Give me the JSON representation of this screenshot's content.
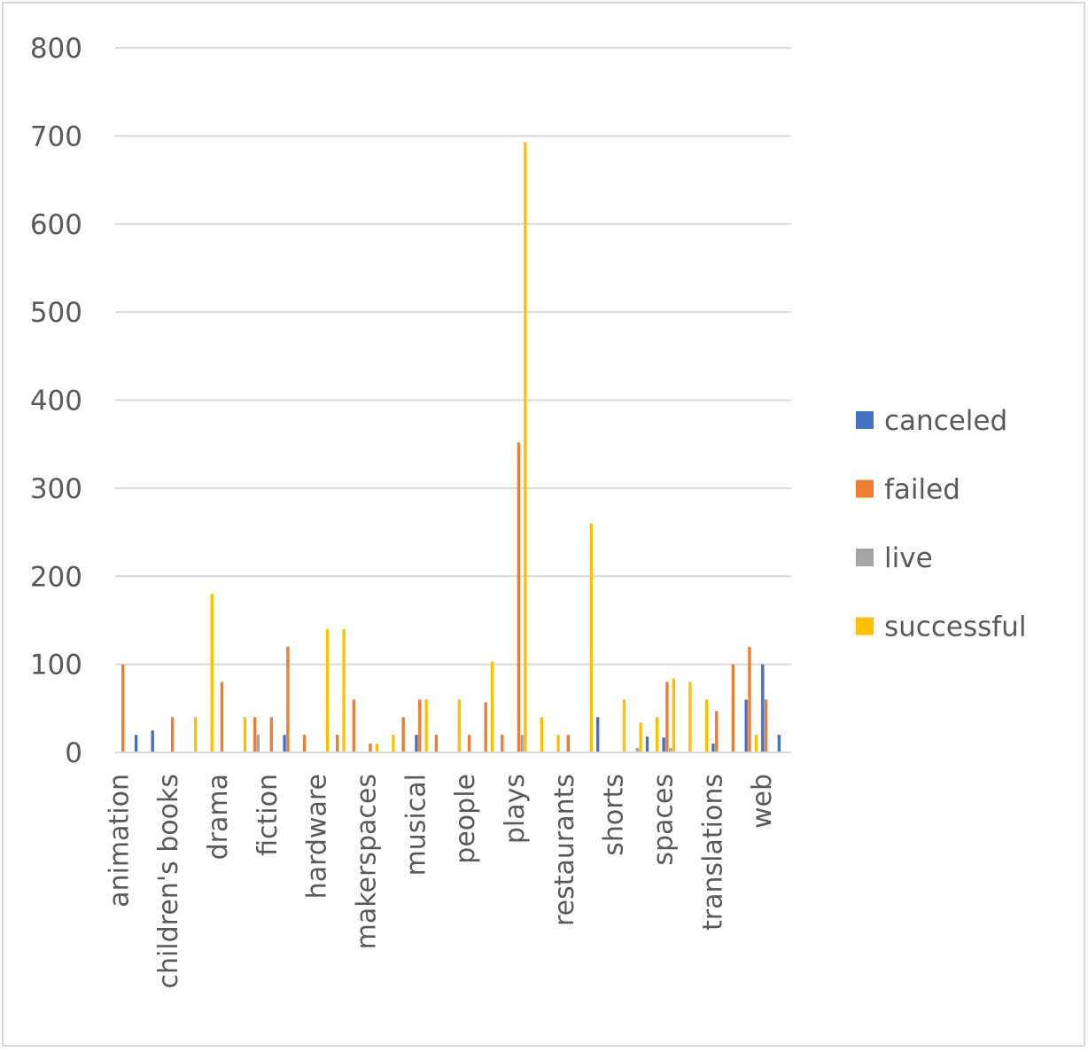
{
  "chart_data": {
    "type": "bar",
    "categories": [
      "animation",
      null,
      null,
      "children's books",
      null,
      null,
      "drama",
      null,
      null,
      "fiction",
      null,
      null,
      "hardware",
      null,
      null,
      "makerspaces",
      null,
      null,
      "musical",
      null,
      null,
      "people",
      null,
      null,
      "plays",
      null,
      null,
      "restaurants",
      null,
      null,
      "shorts",
      null,
      null,
      "spaces",
      null,
      null,
      "translations",
      null,
      null,
      "web",
      null
    ],
    "series": [
      {
        "name": "canceled",
        "color": "#4472c4",
        "values": [
          null,
          20,
          25,
          null,
          null,
          null,
          null,
          null,
          null,
          null,
          20,
          null,
          null,
          null,
          null,
          null,
          null,
          null,
          20,
          null,
          null,
          null,
          null,
          null,
          null,
          null,
          null,
          null,
          null,
          40,
          null,
          null,
          18,
          17,
          null,
          null,
          10,
          null,
          60,
          100,
          20
        ]
      },
      {
        "name": "failed",
        "color": "#ed7d31",
        "values": [
          100,
          null,
          null,
          40,
          null,
          null,
          80,
          null,
          40,
          40,
          120,
          20,
          null,
          20,
          60,
          10,
          null,
          40,
          60,
          20,
          null,
          20,
          57,
          20,
          352,
          null,
          null,
          20,
          null,
          null,
          null,
          null,
          null,
          80,
          null,
          null,
          47,
          100,
          120,
          60,
          null
        ]
      },
      {
        "name": "live",
        "color": "#a5a5a5",
        "values": [
          null,
          null,
          null,
          null,
          null,
          null,
          null,
          null,
          20,
          null,
          null,
          null,
          null,
          null,
          null,
          null,
          null,
          null,
          null,
          null,
          null,
          null,
          null,
          null,
          20,
          null,
          null,
          null,
          null,
          null,
          null,
          5,
          null,
          5,
          null,
          null,
          null,
          null,
          null,
          null,
          null
        ]
      },
      {
        "name": "successful",
        "color": "#ffc000",
        "values": [
          null,
          null,
          null,
          null,
          40,
          180,
          null,
          40,
          null,
          null,
          null,
          null,
          140,
          140,
          null,
          10,
          20,
          null,
          60,
          null,
          60,
          null,
          103,
          null,
          693,
          40,
          20,
          null,
          260,
          null,
          60,
          34,
          40,
          84,
          80,
          60,
          null,
          null,
          20,
          null,
          null
        ]
      }
    ],
    "ylim": [
      0,
      800
    ],
    "yticks": [
      0,
      100,
      200,
      300,
      400,
      500,
      600,
      700,
      800
    ],
    "grid": true,
    "legend": "right"
  }
}
